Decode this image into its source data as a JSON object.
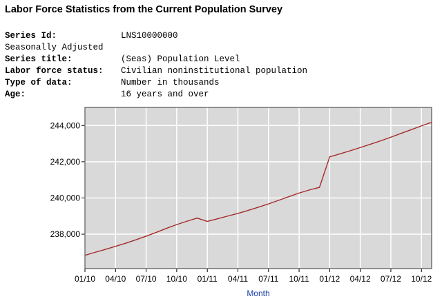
{
  "title": "Labor Force Statistics from the Current Population Survey",
  "meta": [
    {
      "label": "Series Id:",
      "value": "LNS10000000"
    },
    {
      "label": "Seasonally Adjusted",
      "value": ""
    },
    {
      "label": "Series title:",
      "value": "(Seas) Population Level"
    },
    {
      "label": "Labor force status:",
      "value": "Civilian noninstitutional population"
    },
    {
      "label": "Type of data:",
      "value": "Number in thousands"
    },
    {
      "label": "Age:",
      "value": "16 years and over"
    }
  ],
  "chart_data": {
    "type": "line",
    "title": "",
    "xlabel": "Month",
    "ylabel": "",
    "ylim": [
      236100,
      245000
    ],
    "yticks": [
      238000,
      240000,
      242000,
      244000
    ],
    "ytick_labels": [
      "238,000",
      "240,000",
      "242,000",
      "244,000"
    ],
    "xtick_labels": [
      "01/10",
      "04/10",
      "07/10",
      "10/10",
      "01/11",
      "04/11",
      "07/11",
      "10/11",
      "01/12",
      "04/12",
      "07/12",
      "10/12"
    ],
    "xtick_month_index": [
      0,
      3,
      6,
      9,
      12,
      15,
      18,
      21,
      24,
      27,
      30,
      33
    ],
    "x_month_range": [
      0,
      34
    ],
    "grid": true,
    "line_color": "#a52a2a",
    "plot_bg": "#d9d9d9",
    "series": [
      {
        "name": "Population Level",
        "x_start": "01/10",
        "values": [
          236832,
          236998,
          237159,
          237329,
          237499,
          237690,
          237890,
          238099,
          238322,
          238530,
          238715,
          238889,
          238704,
          238851,
          239000,
          239146,
          239313,
          239489,
          239671,
          239871,
          240071,
          240269,
          240441,
          240584,
          242269,
          242435,
          242604,
          242784,
          242966,
          243155,
          243354,
          243566,
          243772,
          243983,
          244174
        ]
      }
    ]
  }
}
